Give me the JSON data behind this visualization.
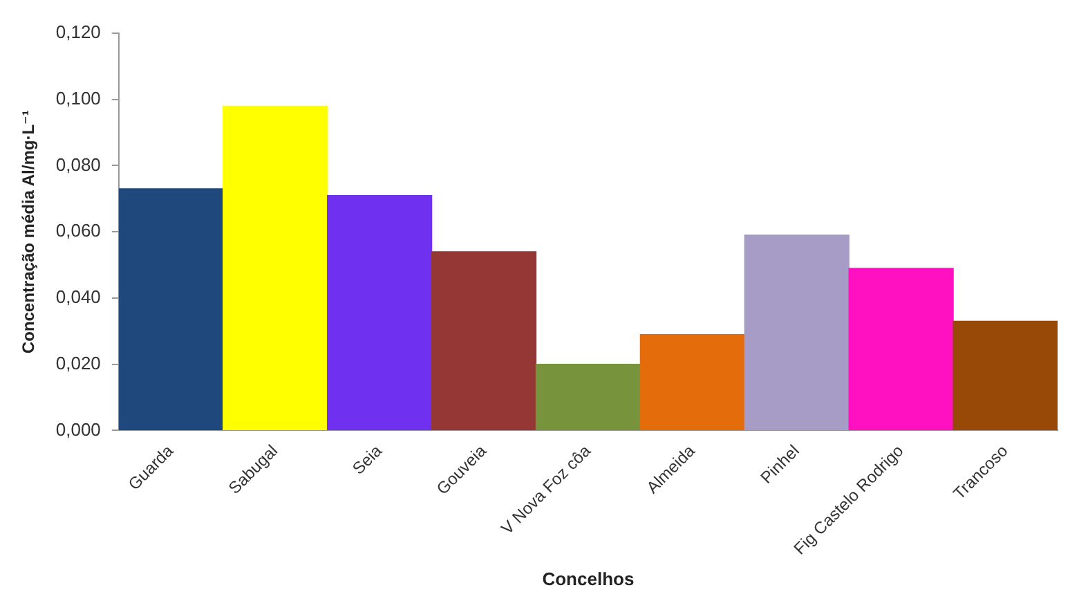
{
  "chart_data": {
    "type": "bar",
    "xlabel": "Concelhos",
    "ylabel": "Concentração média Al/mg·L⁻¹",
    "categories": [
      "Guarda",
      "Sabugal",
      "Seia",
      "Gouveia",
      "V Nova Foz côa",
      "Almeida",
      "Pinhel",
      "Fig Castelo Rodrigo",
      "Trancoso"
    ],
    "values": [
      0.073,
      0.098,
      0.071,
      0.054,
      0.02,
      0.029,
      0.059,
      0.049,
      0.033
    ],
    "colors": [
      "#1f497d",
      "#ffff00",
      "#7030f0",
      "#953735",
      "#77933c",
      "#e46c0a",
      "#a79cc6",
      "#ff10c0",
      "#984807"
    ],
    "ylim": [
      0,
      0.12
    ],
    "yticks": [
      {
        "value": 0,
        "label": "0,000"
      },
      {
        "value": 0.02,
        "label": "0,020"
      },
      {
        "value": 0.04,
        "label": "0,040"
      },
      {
        "value": 0.06,
        "label": "0,060"
      },
      {
        "value": 0.08,
        "label": "0,080"
      },
      {
        "value": 0.1,
        "label": "0,100"
      },
      {
        "value": 0.12,
        "label": "0,120"
      }
    ],
    "grid": false,
    "legend": false
  }
}
